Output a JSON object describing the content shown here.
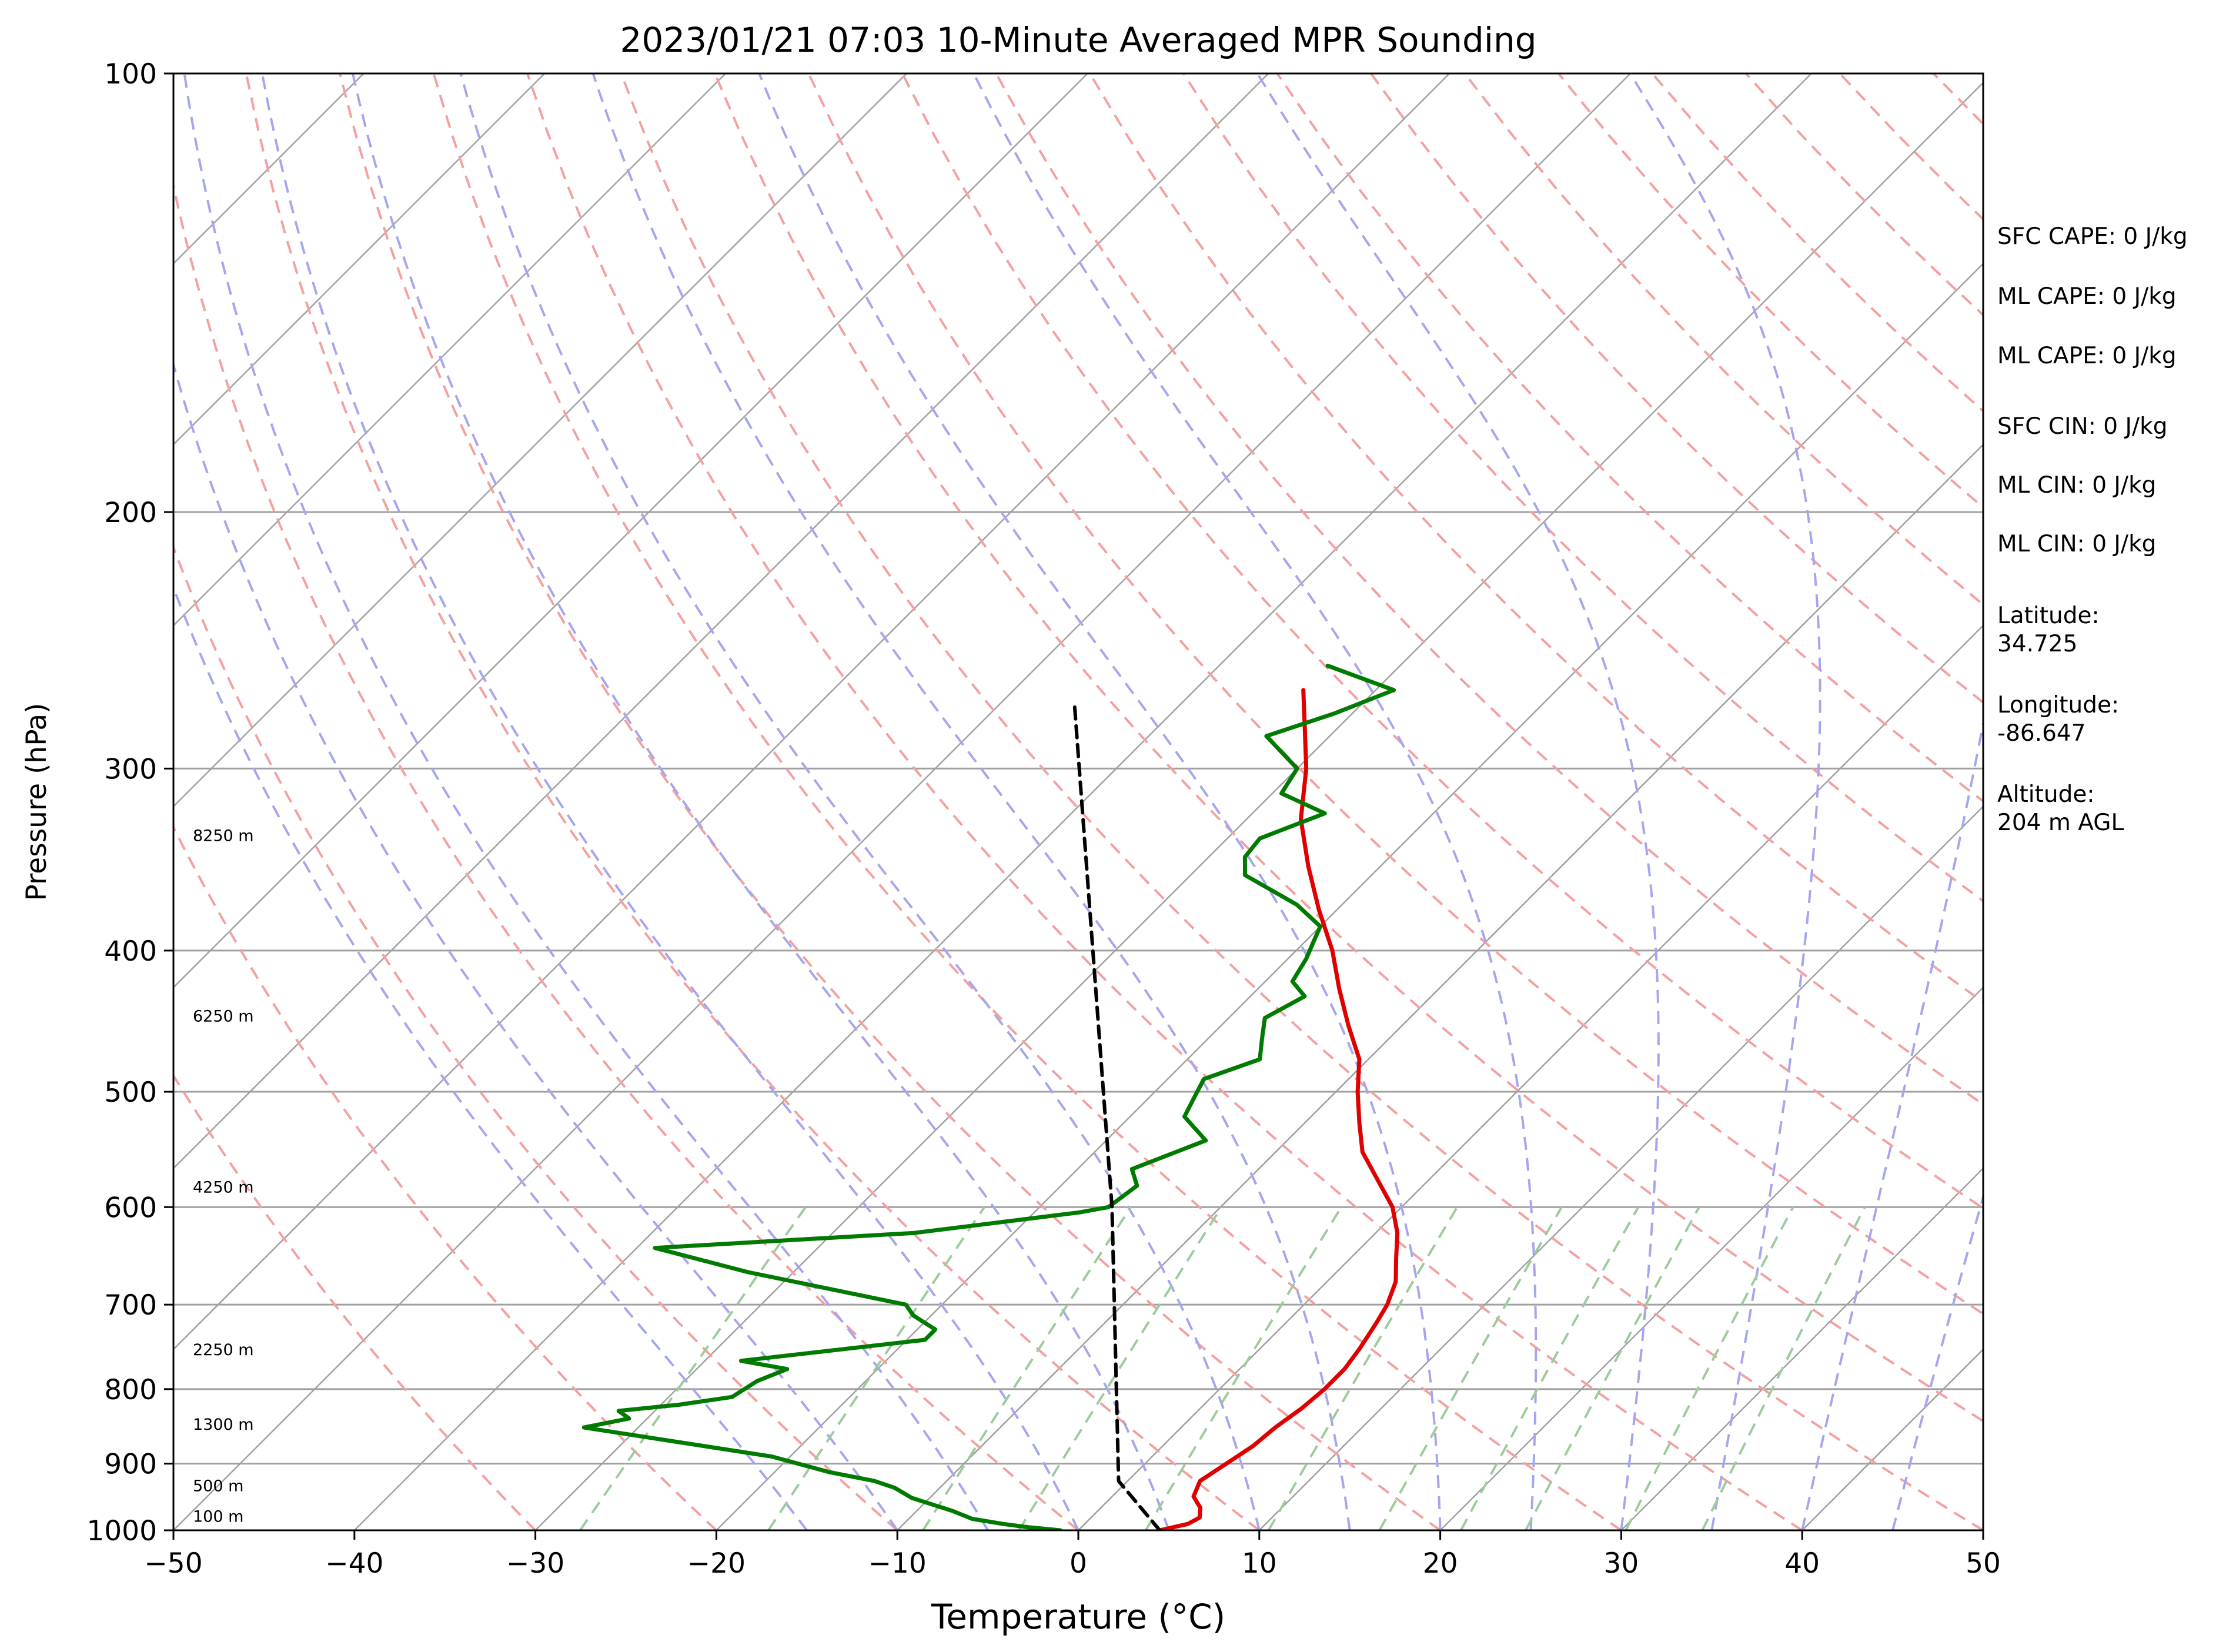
{
  "chart_data": {
    "type": "line",
    "chart_kind": "skew-T log-P",
    "title": "2023/01/21 07:03 10-Minute Averaged MPR Sounding",
    "xlabel": "Temperature (°C)",
    "ylabel": "Pressure (hPa)",
    "xlim": [
      -50,
      50
    ],
    "ylim": [
      1000,
      100
    ],
    "y_scale": "log",
    "x_ticks": [
      "−50",
      "−40",
      "−30",
      "−20",
      "−10",
      "0",
      "10",
      "20",
      "30",
      "40",
      "50"
    ],
    "y_ticks": [
      100,
      200,
      300,
      400,
      500,
      600,
      700,
      800,
      900,
      1000
    ],
    "grid": true,
    "series": [
      {
        "color": "#e00000",
        "points": [
          [
            4.5,
            1000
          ],
          [
            5.7,
            990
          ],
          [
            6,
            980
          ],
          [
            5.5,
            965
          ],
          [
            4.5,
            948
          ],
          [
            4,
            925
          ],
          [
            4.5,
            900
          ],
          [
            5,
            875
          ],
          [
            5.2,
            850
          ],
          [
            5.6,
            825
          ],
          [
            5.8,
            800
          ],
          [
            5.8,
            775
          ],
          [
            5.5,
            750
          ],
          [
            5,
            720
          ],
          [
            4.6,
            700
          ],
          [
            3.8,
            675
          ],
          [
            2.5,
            650
          ],
          [
            1.2,
            625
          ],
          [
            -0.5,
            600
          ],
          [
            -2.8,
            575
          ],
          [
            -5.2,
            550
          ],
          [
            -7,
            525
          ],
          [
            -8.8,
            500
          ],
          [
            -10.5,
            475
          ],
          [
            -13,
            450
          ],
          [
            -15.5,
            425
          ],
          [
            -18,
            400
          ],
          [
            -21,
            375
          ],
          [
            -24,
            350
          ],
          [
            -27,
            325
          ],
          [
            -29.5,
            300
          ],
          [
            -32,
            280
          ],
          [
            -34,
            265
          ]
        ]
      },
      {
        "color": "#007a00",
        "points": [
          [
            -1,
            1000
          ],
          [
            -3,
            995
          ],
          [
            -4.5,
            990
          ],
          [
            -6.5,
            982
          ],
          [
            -8,
            970
          ],
          [
            -9.5,
            960
          ],
          [
            -11,
            950
          ],
          [
            -12.5,
            935
          ],
          [
            -14,
            925
          ],
          [
            -17,
            912
          ],
          [
            -21,
            890
          ],
          [
            -33,
            850
          ],
          [
            -31,
            838
          ],
          [
            -32,
            828
          ],
          [
            -29,
            820
          ],
          [
            -26.5,
            810
          ],
          [
            -26,
            790
          ],
          [
            -25,
            775
          ],
          [
            -28,
            765
          ],
          [
            -19,
            740
          ],
          [
            -19,
            728
          ],
          [
            -21,
            712
          ],
          [
            -22,
            700
          ],
          [
            -32.5,
            665
          ],
          [
            -39,
            640
          ],
          [
            -25.5,
            625
          ],
          [
            -17.5,
            605
          ],
          [
            -16.2,
            600
          ],
          [
            -15.8,
            580
          ],
          [
            -17,
            565
          ],
          [
            -14.5,
            540
          ],
          [
            -17,
            520
          ],
          [
            -17.5,
            505
          ],
          [
            -18,
            490
          ],
          [
            -16,
            475
          ],
          [
            -17,
            460
          ],
          [
            -18,
            445
          ],
          [
            -17,
            430
          ],
          [
            -18.5,
            420
          ],
          [
            -19,
            405
          ],
          [
            -19.5,
            395
          ],
          [
            -20,
            385
          ],
          [
            -22.5,
            372
          ],
          [
            -27,
            355
          ],
          [
            -28,
            345
          ],
          [
            -28.2,
            335
          ],
          [
            -26,
            322
          ],
          [
            -29.5,
            312
          ],
          [
            -30,
            300
          ],
          [
            -33.5,
            285
          ],
          [
            -31,
            275
          ],
          [
            -29,
            265
          ],
          [
            -34,
            255
          ]
        ]
      },
      {
        "color": "#000000",
        "dashed": true,
        "points": [
          [
            4.5,
            1000
          ],
          [
            -0.5,
            925
          ],
          [
            -16,
            600
          ],
          [
            -46,
            270
          ]
        ]
      }
    ],
    "height_labels": [
      "100 m",
      "500 m",
      "1300 m",
      "2250 m",
      "4250 m",
      "6250 m",
      "8250 m"
    ],
    "parameters": [
      "SFC CAPE: 0 J/kg",
      "ML CAPE: 0 J/kg",
      "ML CAPE: 0 J/kg",
      "SFC CIN: 0 J/kg",
      "ML CIN: 0 J/kg",
      "ML CIN: 0 J/kg"
    ],
    "location": {
      "latitude_label": "Latitude:",
      "latitude": "34.725",
      "longitude_label": "Longitude:",
      "longitude": "-86.647",
      "altitude_label": "Altitude:",
      "altitude": "204 m AGL"
    },
    "colors": {
      "temperature": "#e00000",
      "dewpoint": "#007a00",
      "parcel": "#000000",
      "dry_adiabat": "#f4a0a0",
      "moist_adiabat": "#a6a6f0",
      "mixing_ratio": "#9ccc9c",
      "isotherm": "#a0a0a0"
    }
  }
}
